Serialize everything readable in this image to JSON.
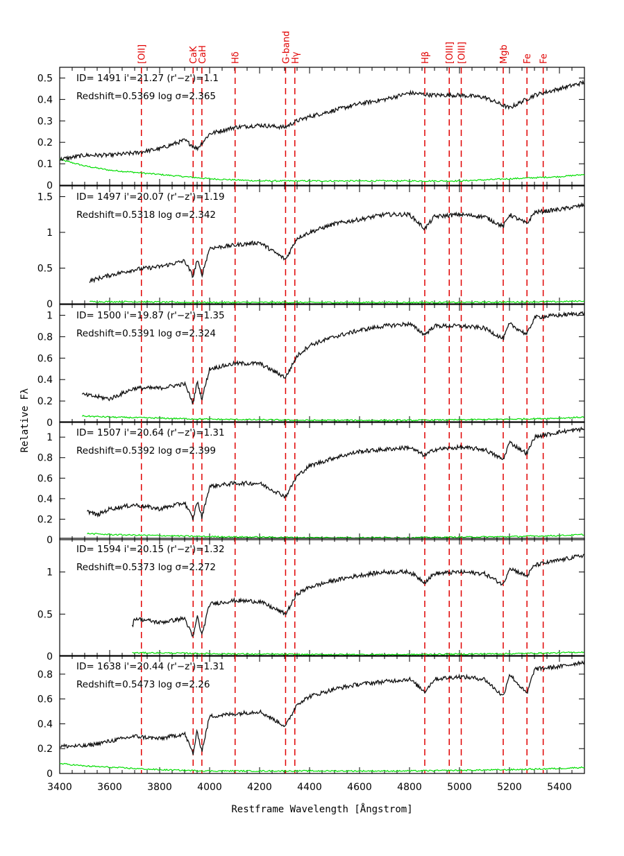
{
  "chart_data": {
    "type": "line",
    "xlabel": "Restframe Wavelength [Ångstrom]",
    "ylabel": "Relative Fλ",
    "xlim": [
      3400,
      5500
    ],
    "x_ticks": [
      3400,
      3600,
      3800,
      4000,
      4200,
      4400,
      4600,
      4800,
      5000,
      5200,
      5400
    ],
    "grid": false,
    "spectral_lines": [
      {
        "label": "[OII]",
        "wavelength": 3727
      },
      {
        "label": "CaK",
        "wavelength": 3934
      },
      {
        "label": "CaH",
        "wavelength": 3969
      },
      {
        "label": "Hδ",
        "wavelength": 4102
      },
      {
        "label": "G-band",
        "wavelength": 4304
      },
      {
        "label": "Hγ",
        "wavelength": 4341
      },
      {
        "label": "Hβ",
        "wavelength": 4861
      },
      {
        "label": "[OIII]",
        "wavelength": 4959
      },
      {
        "label": "[OIII]",
        "wavelength": 5007
      },
      {
        "label": "Mgb",
        "wavelength": 5175
      },
      {
        "label": "Fe",
        "wavelength": 5270
      },
      {
        "label": "Fe",
        "wavelength": 5335
      }
    ],
    "line_color": "#e00000",
    "spectrum_color": "#111111",
    "noise_color": "#00dd00",
    "panels": [
      {
        "line1": "ID=  1491   i'=21.27  (r'−z')=1.1",
        "line2": "Redshift=0.5369   log  σ=2.365",
        "ylim": [
          0,
          0.55
        ],
        "yticks": [
          0,
          0.1,
          0.2,
          0.3,
          0.4,
          0.5
        ],
        "ytick_labels": [
          "0",
          "0.1",
          "0.2",
          "0.3",
          "0.4",
          "0.5"
        ],
        "spectrum": {
          "x": [
            3400,
            3500,
            3600,
            3700,
            3800,
            3900,
            3950,
            4000,
            4100,
            4200,
            4300,
            4350,
            4400,
            4500,
            4600,
            4700,
            4800,
            4900,
            5000,
            5100,
            5200,
            5300,
            5400,
            5500
          ],
          "y": [
            0.12,
            0.14,
            0.14,
            0.15,
            0.17,
            0.21,
            0.17,
            0.24,
            0.27,
            0.28,
            0.27,
            0.3,
            0.32,
            0.35,
            0.38,
            0.4,
            0.43,
            0.42,
            0.42,
            0.41,
            0.36,
            0.42,
            0.45,
            0.48
          ]
        },
        "noise": {
          "x": [
            3400,
            3500,
            3600,
            3700,
            3800,
            3900,
            4000,
            4200,
            4400,
            4600,
            4800,
            5000,
            5200,
            5400,
            5500
          ],
          "y": [
            0.12,
            0.09,
            0.07,
            0.06,
            0.05,
            0.04,
            0.03,
            0.02,
            0.02,
            0.02,
            0.02,
            0.02,
            0.03,
            0.04,
            0.05
          ]
        }
      },
      {
        "line1": "ID=  1497   i'=20.07  (r'−z')=1.19",
        "line2": "Redshift=0.5318   log  σ=2.342",
        "ylim": [
          0,
          1.65
        ],
        "yticks": [
          0,
          0.5,
          1,
          1.5
        ],
        "ytick_labels": [
          "0",
          "0.5",
          "1",
          "1.5"
        ],
        "spectrum": {
          "x": [
            3520,
            3600,
            3700,
            3800,
            3900,
            3934,
            3950,
            3969,
            4000,
            4100,
            4200,
            4304,
            4350,
            4400,
            4500,
            4600,
            4700,
            4800,
            4861,
            4900,
            5000,
            5100,
            5175,
            5200,
            5270,
            5300,
            5400,
            5500
          ],
          "y": [
            0.32,
            0.4,
            0.48,
            0.52,
            0.6,
            0.38,
            0.62,
            0.4,
            0.78,
            0.82,
            0.86,
            0.62,
            0.92,
            1.0,
            1.12,
            1.18,
            1.25,
            1.25,
            1.05,
            1.22,
            1.25,
            1.22,
            1.08,
            1.25,
            1.12,
            1.28,
            1.32,
            1.38
          ]
        },
        "noise": {
          "x": [
            3520,
            3700,
            3900,
            4200,
            4600,
            5000,
            5400,
            5500
          ],
          "y": [
            0.03,
            0.03,
            0.02,
            0.02,
            0.02,
            0.02,
            0.03,
            0.04
          ]
        }
      },
      {
        "line1": "ID=  1500   i'=19.87  (r'−z')=1.35",
        "line2": "Redshift=0.5391   log  σ=2.324",
        "ylim": [
          0,
          1.1
        ],
        "yticks": [
          0,
          0.2,
          0.4,
          0.6,
          0.8,
          1
        ],
        "ytick_labels": [
          "0",
          "0.2",
          "0.4",
          "0.6",
          "0.8",
          "1"
        ],
        "spectrum": {
          "x": [
            3490,
            3550,
            3600,
            3700,
            3800,
            3900,
            3934,
            3950,
            3969,
            4000,
            4100,
            4200,
            4304,
            4350,
            4400,
            4500,
            4600,
            4700,
            4800,
            4861,
            4900,
            5000,
            5100,
            5175,
            5200,
            5270,
            5300,
            5400,
            5500
          ],
          "y": [
            0.26,
            0.24,
            0.22,
            0.32,
            0.32,
            0.36,
            0.18,
            0.38,
            0.22,
            0.5,
            0.55,
            0.55,
            0.42,
            0.62,
            0.72,
            0.8,
            0.86,
            0.9,
            0.92,
            0.82,
            0.9,
            0.9,
            0.88,
            0.78,
            0.92,
            0.82,
            0.98,
            1.0,
            1.02
          ]
        },
        "noise": {
          "x": [
            3490,
            3600,
            3800,
            4000,
            4400,
            4800,
            5200,
            5400,
            5500
          ],
          "y": [
            0.06,
            0.05,
            0.04,
            0.03,
            0.02,
            0.02,
            0.03,
            0.04,
            0.05
          ]
        }
      },
      {
        "line1": "ID=  1507   i'=20.64  (r'−z')=1.31",
        "line2": "Redshift=0.5392   log  σ=2.399",
        "ylim": [
          0,
          1.15
        ],
        "yticks": [
          0,
          0.2,
          0.4,
          0.6,
          0.8,
          1
        ],
        "ytick_labels": [
          "0",
          "0.2",
          "0.4",
          "0.6",
          "0.8",
          "1"
        ],
        "spectrum": {
          "x": [
            3510,
            3550,
            3600,
            3700,
            3800,
            3900,
            3934,
            3950,
            3969,
            4000,
            4100,
            4200,
            4304,
            4350,
            4400,
            4500,
            4600,
            4700,
            4800,
            4861,
            4900,
            5000,
            5100,
            5175,
            5200,
            5270,
            5300,
            5400,
            5500
          ],
          "y": [
            0.28,
            0.24,
            0.3,
            0.34,
            0.3,
            0.36,
            0.2,
            0.38,
            0.22,
            0.52,
            0.55,
            0.55,
            0.42,
            0.62,
            0.72,
            0.8,
            0.86,
            0.88,
            0.9,
            0.82,
            0.88,
            0.9,
            0.88,
            0.78,
            0.95,
            0.84,
            1.0,
            1.05,
            1.08
          ]
        },
        "noise": {
          "x": [
            3510,
            3600,
            3800,
            4000,
            4400,
            4800,
            5200,
            5400,
            5500
          ],
          "y": [
            0.06,
            0.05,
            0.04,
            0.03,
            0.02,
            0.02,
            0.03,
            0.04,
            0.05
          ]
        }
      },
      {
        "line1": "ID=  1594   i'=20.15  (r'−z')=1.32",
        "line2": "Redshift=0.5373   log  σ=2.272",
        "ylim": [
          0,
          1.4
        ],
        "yticks": [
          0,
          0.5,
          1
        ],
        "ytick_labels": [
          "0",
          "0.5",
          "1"
        ],
        "spectrum": {
          "x": [
            3690,
            3700,
            3800,
            3900,
            3934,
            3950,
            3969,
            4000,
            4100,
            4200,
            4304,
            4350,
            4400,
            4500,
            4600,
            4700,
            4800,
            4861,
            4900,
            5000,
            5100,
            5175,
            5200,
            5270,
            5300,
            5400,
            5500
          ],
          "y": [
            0.35,
            0.45,
            0.4,
            0.45,
            0.22,
            0.48,
            0.25,
            0.62,
            0.66,
            0.65,
            0.5,
            0.74,
            0.82,
            0.9,
            0.96,
            1.0,
            1.0,
            0.88,
            0.98,
            1.0,
            0.98,
            0.85,
            1.05,
            0.95,
            1.08,
            1.14,
            1.2
          ]
        },
        "noise": {
          "x": [
            3690,
            3800,
            4000,
            4400,
            4800,
            5200,
            5400,
            5500
          ],
          "y": [
            0.04,
            0.04,
            0.03,
            0.02,
            0.02,
            0.03,
            0.04,
            0.05
          ]
        }
      },
      {
        "line1": "ID=  1638   i'=20.44  (r'−z')=1.31",
        "line2": "Redshift=0.5473   log  σ=2.26",
        "ylim": [
          0,
          0.95
        ],
        "yticks": [
          0,
          0.2,
          0.4,
          0.6,
          0.8
        ],
        "ytick_labels": [
          "0",
          "0.2",
          "0.4",
          "0.6",
          "0.8"
        ],
        "spectrum": {
          "x": [
            3400,
            3500,
            3600,
            3700,
            3800,
            3900,
            3934,
            3950,
            3969,
            4000,
            4100,
            4200,
            4304,
            4350,
            4400,
            4500,
            4600,
            4700,
            4800,
            4861,
            4900,
            5000,
            5100,
            5175,
            5200,
            5270,
            5300,
            5400,
            5500
          ],
          "y": [
            0.22,
            0.22,
            0.26,
            0.3,
            0.28,
            0.32,
            0.16,
            0.34,
            0.18,
            0.46,
            0.48,
            0.5,
            0.38,
            0.56,
            0.62,
            0.68,
            0.72,
            0.74,
            0.76,
            0.66,
            0.76,
            0.78,
            0.76,
            0.62,
            0.8,
            0.64,
            0.84,
            0.86,
            0.9
          ]
        },
        "noise": {
          "x": [
            3400,
            3500,
            3600,
            3700,
            3800,
            4000,
            4400,
            4800,
            5200,
            5400,
            5500
          ],
          "y": [
            0.08,
            0.06,
            0.05,
            0.04,
            0.03,
            0.02,
            0.02,
            0.02,
            0.03,
            0.04,
            0.05
          ]
        }
      }
    ]
  }
}
